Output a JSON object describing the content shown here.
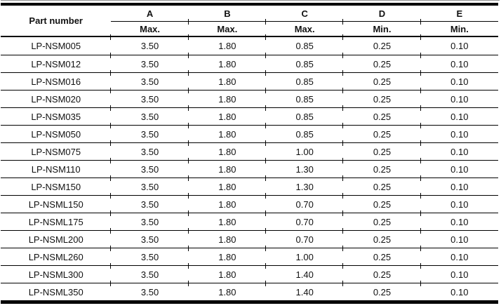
{
  "table": {
    "part_number_header": "Part number",
    "columns": [
      {
        "letter": "A",
        "limit": "Max."
      },
      {
        "letter": "B",
        "limit": "Max."
      },
      {
        "letter": "C",
        "limit": "Max."
      },
      {
        "letter": "D",
        "limit": "Min."
      },
      {
        "letter": "E",
        "limit": "Min."
      }
    ],
    "rows": [
      {
        "part": "LP-NSM005",
        "values": [
          "3.50",
          "1.80",
          "0.85",
          "0.25",
          "0.10"
        ]
      },
      {
        "part": "LP-NSM012",
        "values": [
          "3.50",
          "1.80",
          "0.85",
          "0.25",
          "0.10"
        ]
      },
      {
        "part": "LP-NSM016",
        "values": [
          "3.50",
          "1.80",
          "0.85",
          "0.25",
          "0.10"
        ]
      },
      {
        "part": "LP-NSM020",
        "values": [
          "3.50",
          "1.80",
          "0.85",
          "0.25",
          "0.10"
        ]
      },
      {
        "part": "LP-NSM035",
        "values": [
          "3.50",
          "1.80",
          "0.85",
          "0.25",
          "0.10"
        ]
      },
      {
        "part": "LP-NSM050",
        "values": [
          "3.50",
          "1.80",
          "0.85",
          "0.25",
          "0.10"
        ]
      },
      {
        "part": "LP-NSM075",
        "values": [
          "3.50",
          "1.80",
          "1.00",
          "0.25",
          "0.10"
        ]
      },
      {
        "part": "LP-NSM110",
        "values": [
          "3.50",
          "1.80",
          "1.30",
          "0.25",
          "0.10"
        ]
      },
      {
        "part": "LP-NSM150",
        "values": [
          "3.50",
          "1.80",
          "1.30",
          "0.25",
          "0.10"
        ]
      },
      {
        "part": "LP-NSML150",
        "values": [
          "3.50",
          "1.80",
          "0.70",
          "0.25",
          "0.10"
        ]
      },
      {
        "part": "LP-NSML175",
        "values": [
          "3.50",
          "1.80",
          "0.70",
          "0.25",
          "0.10"
        ]
      },
      {
        "part": "LP-NSML200",
        "values": [
          "3.50",
          "1.80",
          "0.70",
          "0.25",
          "0.10"
        ]
      },
      {
        "part": "LP-NSML260",
        "values": [
          "3.50",
          "1.80",
          "1.00",
          "0.25",
          "0.10"
        ]
      },
      {
        "part": "LP-NSML300",
        "values": [
          "3.50",
          "1.80",
          "1.40",
          "0.25",
          "0.10"
        ]
      },
      {
        "part": "LP-NSML350",
        "values": [
          "3.50",
          "1.80",
          "1.40",
          "0.25",
          "0.10"
        ]
      }
    ],
    "line_color": "#000000",
    "text_color": "#111111",
    "background_color": "#ffffff"
  }
}
